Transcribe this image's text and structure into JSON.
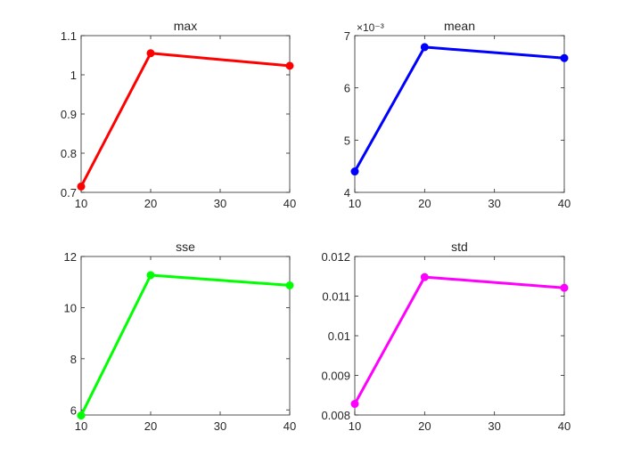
{
  "chart_data": [
    {
      "type": "line",
      "title": "max",
      "xlabel": "",
      "ylabel": "",
      "x": [
        10,
        20,
        40
      ],
      "xlim": [
        10,
        40
      ],
      "xticks": [
        "10",
        "20",
        "30",
        "40"
      ],
      "ylim": [
        0.7,
        1.1
      ],
      "yticks": [
        "0.7",
        "0.8",
        "0.9",
        "1",
        "1.1"
      ],
      "exponent_label": "",
      "grid": false,
      "series": [
        {
          "values": [
            0.715,
            1.055,
            1.023
          ],
          "color": "#ff0000"
        }
      ]
    },
    {
      "type": "line",
      "title": "mean",
      "xlabel": "",
      "ylabel": "",
      "x": [
        10,
        20,
        40
      ],
      "xlim": [
        10,
        40
      ],
      "xticks": [
        "10",
        "20",
        "30",
        "40"
      ],
      "ylim": [
        0.004,
        0.007
      ],
      "yticks": [
        "4",
        "5",
        "6",
        "7"
      ],
      "exponent_label": "×10⁻³",
      "grid": false,
      "series": [
        {
          "values": [
            0.0044,
            0.00678,
            0.00657
          ],
          "color": "#0000ff"
        }
      ]
    },
    {
      "type": "line",
      "title": "sse",
      "xlabel": "",
      "ylabel": "",
      "x": [
        10,
        20,
        40
      ],
      "xlim": [
        10,
        40
      ],
      "xticks": [
        "10",
        "20",
        "30",
        "40"
      ],
      "ylim": [
        5.8,
        12
      ],
      "yticks": [
        "6",
        "8",
        "10",
        "12"
      ],
      "exponent_label": "",
      "grid": false,
      "series": [
        {
          "values": [
            5.78,
            11.27,
            10.87
          ],
          "color": "#00ff00"
        }
      ]
    },
    {
      "type": "line",
      "title": "std",
      "xlabel": "",
      "ylabel": "",
      "x": [
        10,
        20,
        40
      ],
      "xlim": [
        10,
        40
      ],
      "xticks": [
        "10",
        "20",
        "30",
        "40"
      ],
      "ylim": [
        0.008,
        0.012
      ],
      "yticks": [
        "0.008",
        "0.009",
        "0.01",
        "0.011",
        "0.012"
      ],
      "exponent_label": "",
      "grid": false,
      "series": [
        {
          "values": [
            0.00828,
            0.01148,
            0.01121
          ],
          "color": "#ff00ff"
        }
      ]
    }
  ]
}
